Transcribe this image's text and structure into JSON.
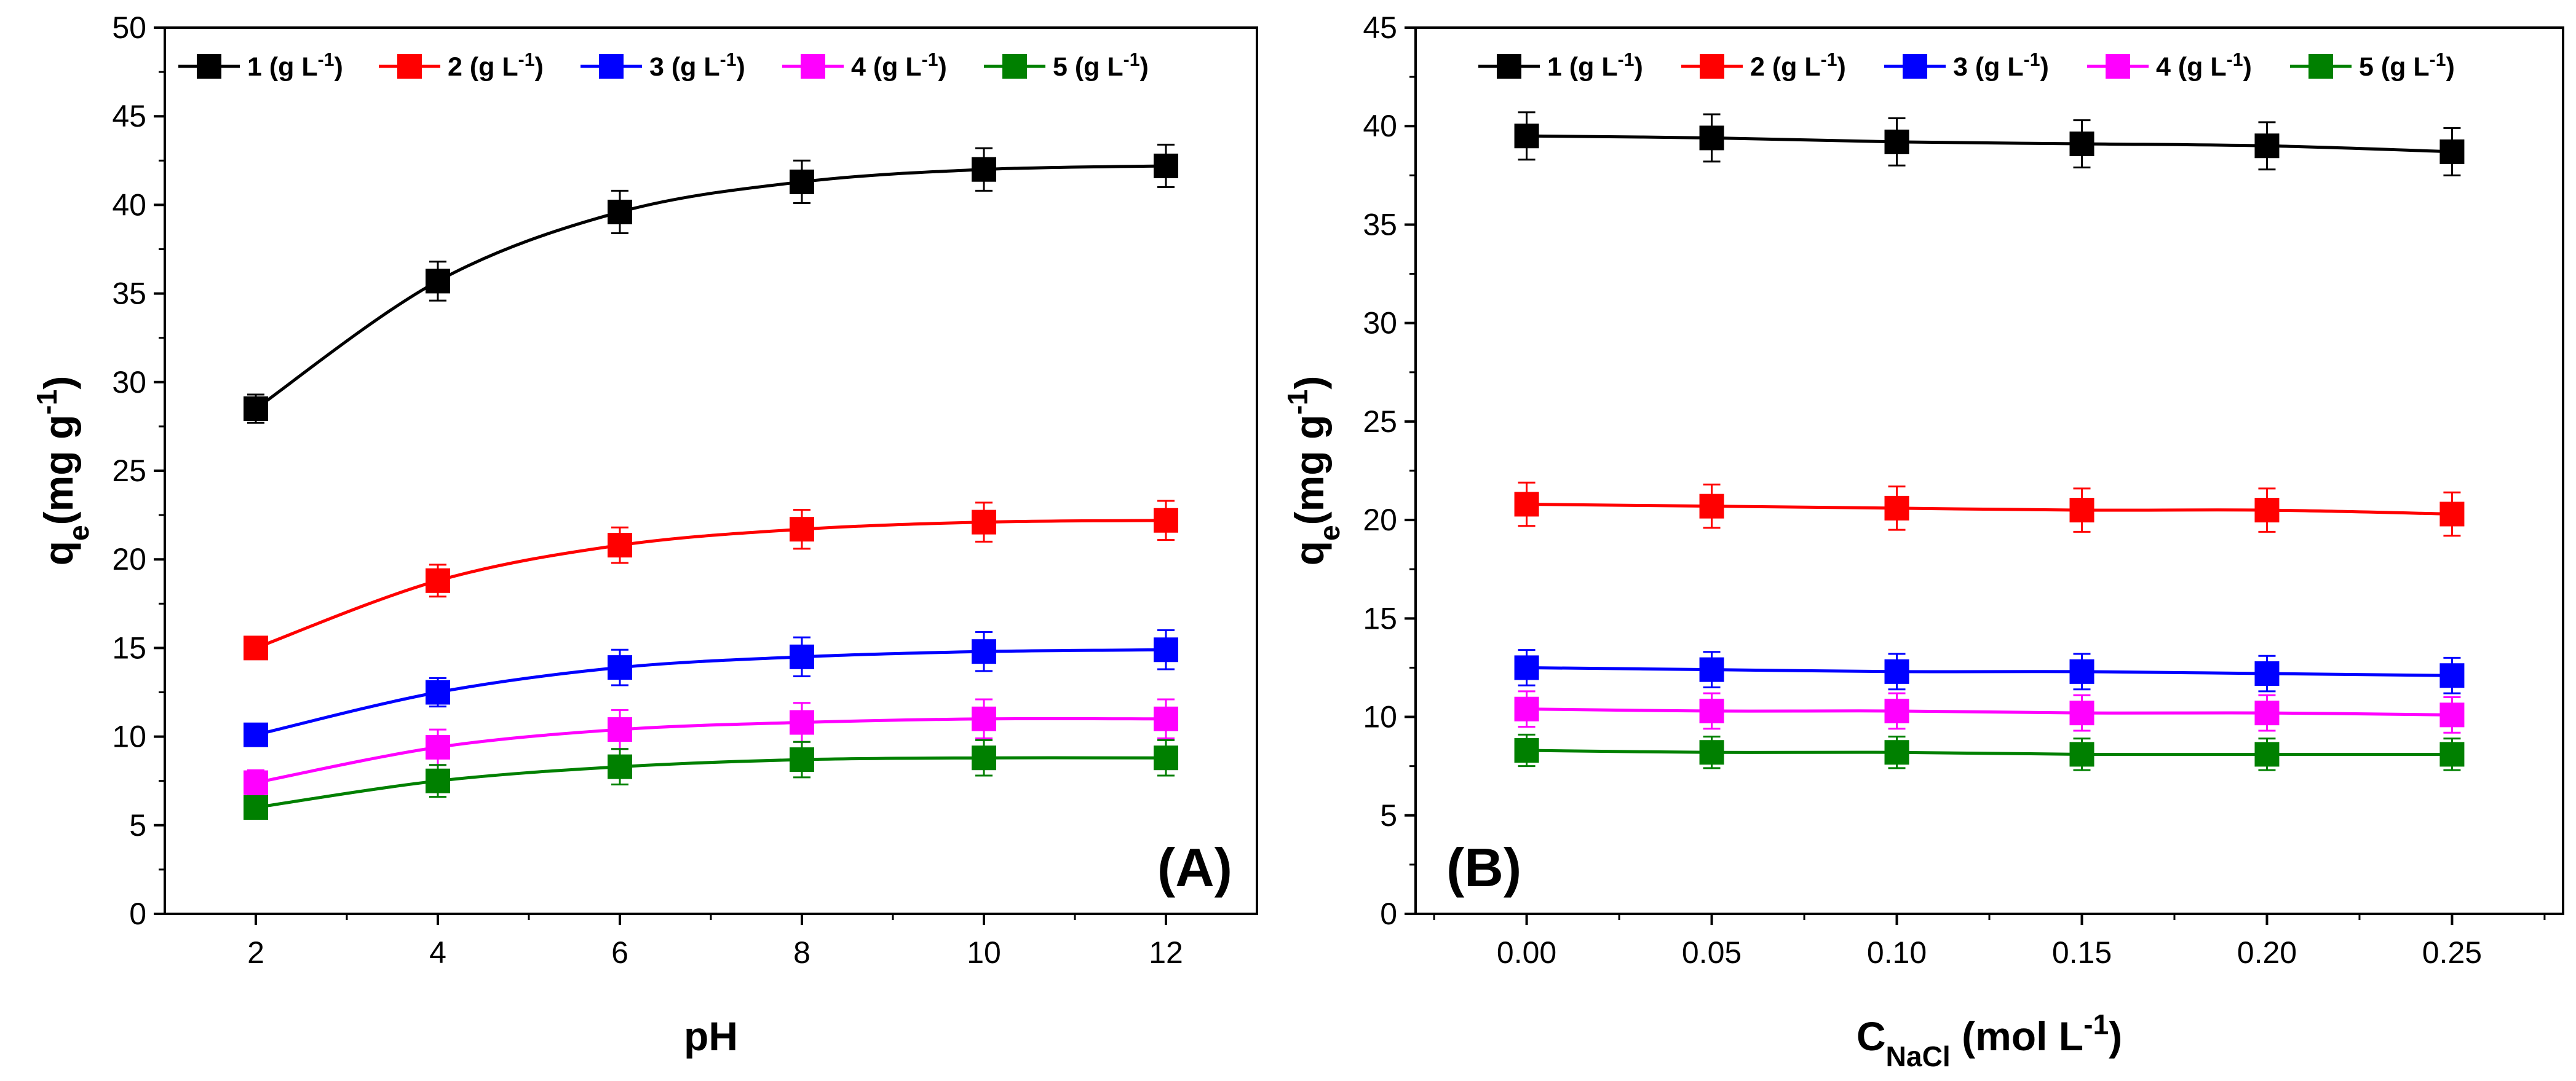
{
  "chart_data": [
    {
      "type": "line",
      "panel_label": "(A)",
      "title": "",
      "xlabel": "pH",
      "ylabel": {
        "main": "q",
        "sub": "e",
        "unit": "(mg g",
        "sup": "-1",
        "close": ")"
      },
      "xlim": [
        1,
        13
      ],
      "ylim": [
        0,
        50
      ],
      "xticks": [
        2,
        4,
        6,
        8,
        10,
        12
      ],
      "xtick_labels": [
        "2",
        "4",
        "6",
        "8",
        "10",
        "12"
      ],
      "yticks": [
        0,
        5,
        10,
        15,
        20,
        25,
        30,
        35,
        40,
        45,
        50
      ],
      "ytick_labels": [
        "0",
        "5",
        "10",
        "15",
        "20",
        "25",
        "30",
        "35",
        "40",
        "45",
        "50"
      ],
      "grid": false,
      "legend_position": "top",
      "x": [
        2,
        4,
        6,
        8,
        10,
        12
      ],
      "series": [
        {
          "name": "1 (g L-1)",
          "label": {
            "pre": "1 (g L",
            "sup": "-1",
            "post": ")"
          },
          "color": "#000000",
          "values": [
            28.5,
            35.7,
            39.6,
            41.3,
            42.0,
            42.2
          ],
          "error": [
            0.8,
            1.1,
            1.2,
            1.2,
            1.2,
            1.2
          ]
        },
        {
          "name": "2 (g L-1)",
          "label": {
            "pre": "2 (g L",
            "sup": "-1",
            "post": ")"
          },
          "color": "#ff0000",
          "values": [
            15.0,
            18.8,
            20.8,
            21.7,
            22.1,
            22.2
          ],
          "error": [
            0.5,
            0.9,
            1.0,
            1.1,
            1.1,
            1.1
          ]
        },
        {
          "name": "3 (g L-1)",
          "label": {
            "pre": "3 (g L",
            "sup": "-1",
            "post": ")"
          },
          "color": "#0000ff",
          "values": [
            10.1,
            12.5,
            13.9,
            14.5,
            14.8,
            14.9
          ],
          "error": [
            0.4,
            0.8,
            1.0,
            1.1,
            1.1,
            1.1
          ]
        },
        {
          "name": "4 (g L-1)",
          "label": {
            "pre": "4 (g L",
            "sup": "-1",
            "post": ")"
          },
          "color": "#ff00ff",
          "values": [
            7.4,
            9.4,
            10.4,
            10.8,
            11.0,
            11.0
          ],
          "error": [
            0.7,
            1.0,
            1.1,
            1.1,
            1.1,
            1.1
          ]
        },
        {
          "name": "5 (g L-1)",
          "label": {
            "pre": "5 (g L",
            "sup": "-1",
            "post": ")"
          },
          "color": "#008000",
          "values": [
            6.0,
            7.5,
            8.3,
            8.7,
            8.8,
            8.8
          ],
          "error": [
            0.4,
            0.9,
            1.0,
            1.0,
            1.0,
            1.0
          ]
        }
      ]
    },
    {
      "type": "line",
      "panel_label": "(B)",
      "title": "",
      "xlabel": {
        "main": "C",
        "sub": "NaCl",
        "unit": " (mol L",
        "sup": "-1",
        "close": ")"
      },
      "ylabel": {
        "main": "q",
        "sub": "e",
        "unit": "(mg g",
        "sup": "-1",
        "close": ")"
      },
      "xlim": [
        -0.03,
        0.28
      ],
      "ylim": [
        0,
        45
      ],
      "xticks": [
        0.0,
        0.05,
        0.1,
        0.15,
        0.2,
        0.25
      ],
      "xtick_labels": [
        "0.00",
        "0.05",
        "0.10",
        "0.15",
        "0.20",
        "0.25"
      ],
      "yticks": [
        0,
        5,
        10,
        15,
        20,
        25,
        30,
        35,
        40,
        45
      ],
      "ytick_labels": [
        "0",
        "5",
        "10",
        "15",
        "20",
        "25",
        "30",
        "35",
        "40",
        "45"
      ],
      "grid": false,
      "legend_position": "top",
      "x": [
        0.0,
        0.05,
        0.1,
        0.15,
        0.2,
        0.25
      ],
      "series": [
        {
          "name": "1 (g L-1)",
          "label": {
            "pre": "1 (g L",
            "sup": "-1",
            "post": ")"
          },
          "color": "#000000",
          "values": [
            39.5,
            39.4,
            39.2,
            39.1,
            39.0,
            38.7
          ],
          "error": [
            1.2,
            1.2,
            1.2,
            1.2,
            1.2,
            1.2
          ]
        },
        {
          "name": "2 (g L-1)",
          "label": {
            "pre": "2 (g L",
            "sup": "-1",
            "post": ")"
          },
          "color": "#ff0000",
          "values": [
            20.8,
            20.7,
            20.6,
            20.5,
            20.5,
            20.3
          ],
          "error": [
            1.1,
            1.1,
            1.1,
            1.1,
            1.1,
            1.1
          ]
        },
        {
          "name": "3 (g L-1)",
          "label": {
            "pre": "3 (g L",
            "sup": "-1",
            "post": ")"
          },
          "color": "#0000ff",
          "values": [
            12.5,
            12.4,
            12.3,
            12.3,
            12.2,
            12.1
          ],
          "error": [
            0.9,
            0.9,
            0.9,
            0.9,
            0.9,
            0.9
          ]
        },
        {
          "name": "4 (g L-1)",
          "label": {
            "pre": "4 (g L",
            "sup": "-1",
            "post": ")"
          },
          "color": "#ff00ff",
          "values": [
            10.4,
            10.3,
            10.3,
            10.2,
            10.2,
            10.1
          ],
          "error": [
            0.9,
            0.9,
            0.9,
            0.9,
            0.9,
            0.9
          ]
        },
        {
          "name": "5 (g L-1)",
          "label": {
            "pre": "5 (g L",
            "sup": "-1",
            "post": ")"
          },
          "color": "#008000",
          "values": [
            8.3,
            8.2,
            8.2,
            8.1,
            8.1,
            8.1
          ],
          "error": [
            0.8,
            0.8,
            0.8,
            0.8,
            0.8,
            0.8
          ]
        }
      ]
    }
  ]
}
